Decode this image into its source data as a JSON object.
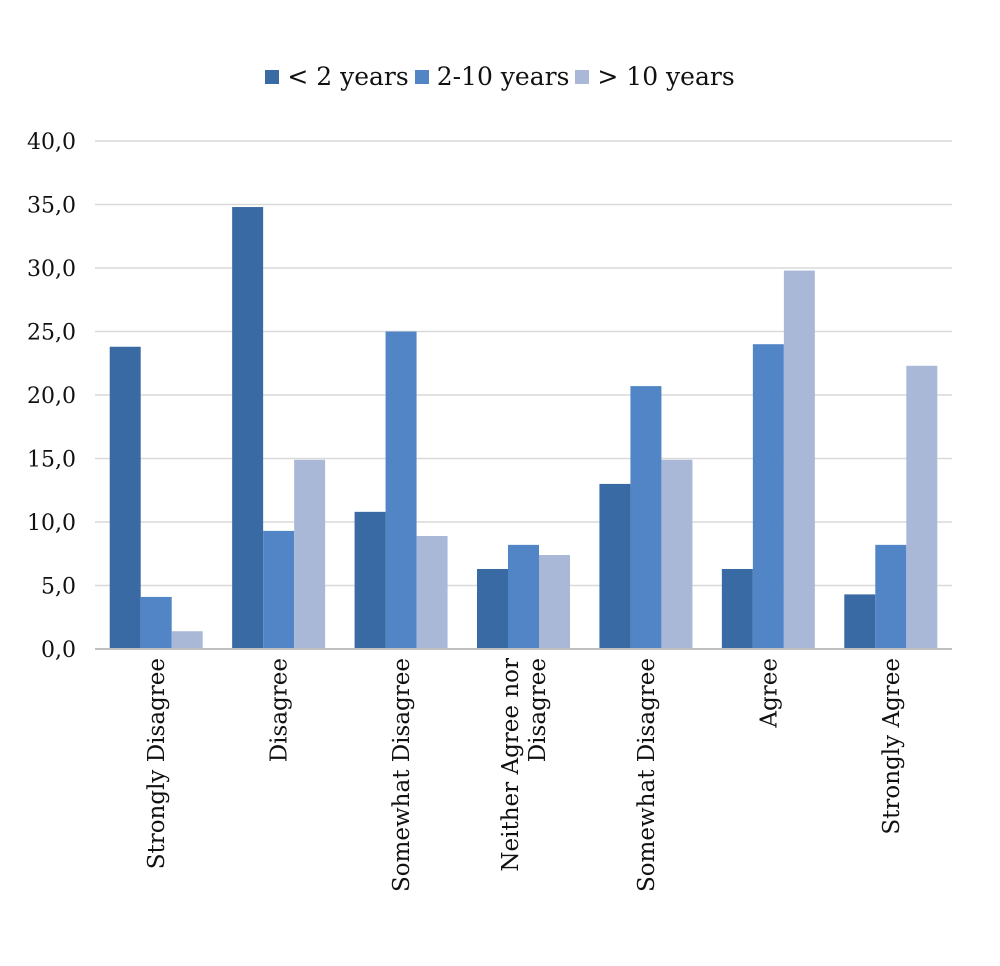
{
  "chart_data": {
    "type": "bar",
    "title": "",
    "xlabel": "",
    "ylabel": "",
    "ylim": [
      0,
      40
    ],
    "yticks": [
      "0,0",
      "5,0",
      "10,0",
      "15,0",
      "20,0",
      "25,0",
      "30,0",
      "35,0",
      "40,0"
    ],
    "grid": true,
    "legend_position": "top-center",
    "categories": [
      "Strongly Disagree",
      "Disagree",
      "Somewhat Disagree",
      "Neither Agree nor Disagree",
      "Somewhat  Disagree",
      "Agree",
      "Strongly Agree"
    ],
    "series": [
      {
        "name": "< 2 years",
        "color": "#3a6aa3",
        "values": [
          23.8,
          34.8,
          10.8,
          6.3,
          13.0,
          6.3,
          4.3
        ]
      },
      {
        "name": "2-10 years",
        "color": "#5285c5",
        "values": [
          4.1,
          9.3,
          25.0,
          8.2,
          20.7,
          24.0,
          8.2
        ]
      },
      {
        "name": "> 10 years",
        "color": "#aab8d8",
        "values": [
          1.4,
          14.9,
          8.9,
          7.4,
          14.9,
          29.8,
          22.3
        ]
      }
    ]
  }
}
